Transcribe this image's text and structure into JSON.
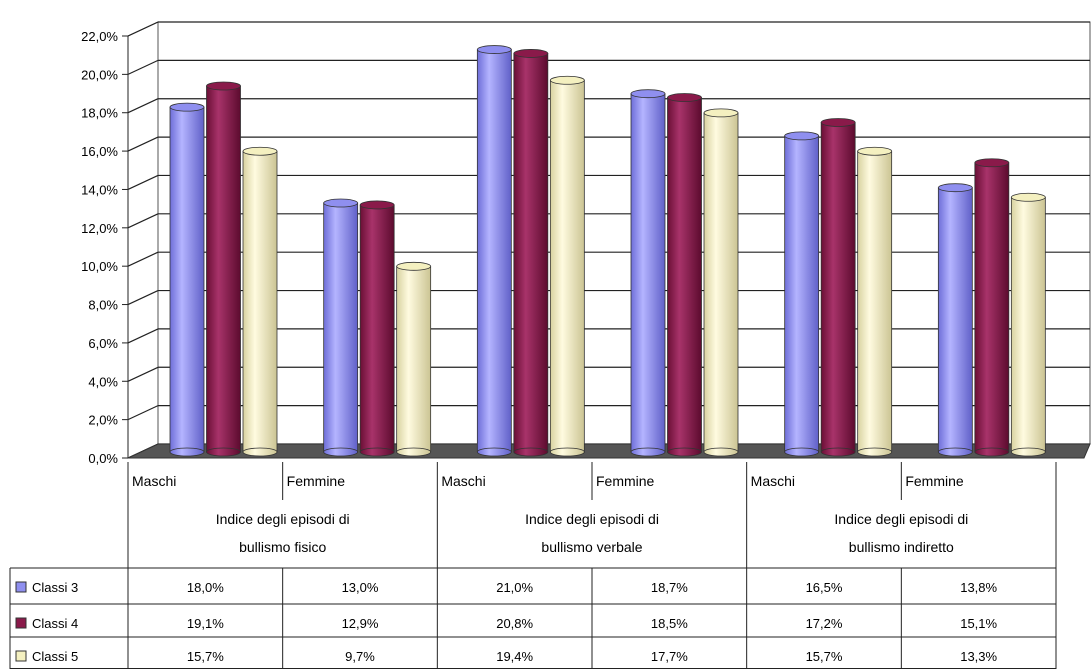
{
  "chart_data": {
    "type": "bar",
    "ylim": [
      0,
      22
    ],
    "y_ticks": [
      "0,0%",
      "2,0%",
      "4,0%",
      "6,0%",
      "8,0%",
      "10,0%",
      "12,0%",
      "14,0%",
      "16,0%",
      "18,0%",
      "20,0%",
      "22,0%"
    ],
    "grid": true,
    "legend_placement": "left, inside data table",
    "categories": [
      "Maschi",
      "Femmine",
      "Maschi",
      "Femmine",
      "Maschi",
      "Femmine"
    ],
    "groups": [
      {
        "line1": "Indice degli episodi di",
        "line2": "bullismo fisico"
      },
      {
        "line1": "Indice degli episodi di",
        "line2": "bullismo verbale"
      },
      {
        "line1": "Indice degli episodi di",
        "line2": "bullismo indiretto"
      }
    ],
    "series": [
      {
        "name": "Classi 3",
        "color": "#8f8fef",
        "values": [
          18.0,
          13.0,
          21.0,
          18.7,
          16.5,
          13.8
        ],
        "labels": [
          "18,0%",
          "13,0%",
          "21,0%",
          "18,7%",
          "16,5%",
          "13,8%"
        ]
      },
      {
        "name": "Classi 4",
        "color": "#8a1a4a",
        "values": [
          19.1,
          12.9,
          20.8,
          18.5,
          17.2,
          15.1
        ],
        "labels": [
          "19,1%",
          "12,9%",
          "20,8%",
          "18,5%",
          "17,2%",
          "15,1%"
        ]
      },
      {
        "name": "Classi 5",
        "color": "#f4f0c0",
        "values": [
          15.7,
          9.7,
          19.4,
          17.7,
          15.7,
          13.3
        ],
        "labels": [
          "15,7%",
          "9,7%",
          "19,4%",
          "17,7%",
          "15,7%",
          "13,3%"
        ]
      }
    ]
  }
}
